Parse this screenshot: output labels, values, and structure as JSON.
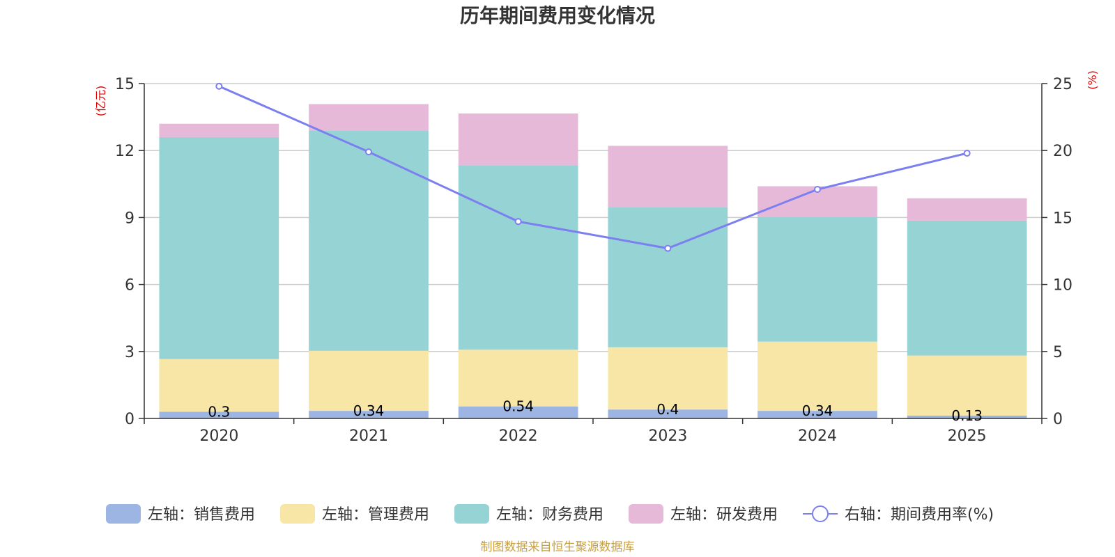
{
  "chart_data": {
    "type": "bar",
    "title": "历年期间费用变化情况",
    "categories": [
      "2020",
      "2021",
      "2022",
      "2023",
      "2024",
      "2025"
    ],
    "left_axis": {
      "unit": "(亿元)",
      "ylim": [
        0,
        15
      ],
      "ticks": [
        "0",
        "3",
        "6",
        "9",
        "12",
        "15"
      ]
    },
    "right_axis": {
      "unit": "(%)",
      "ylim": [
        0,
        25
      ],
      "ticks": [
        "0",
        "5",
        "10",
        "15",
        "20",
        "25"
      ]
    },
    "series": [
      {
        "name": "左轴：销售费用",
        "type": "bar",
        "axis": "left",
        "color": "#9db5e3",
        "values": [
          0.3,
          0.34,
          0.54,
          0.4,
          0.34,
          0.13
        ],
        "labels": [
          "0.3",
          "0.34",
          "0.54",
          "0.4",
          "0.34",
          "0.13"
        ]
      },
      {
        "name": "左轴：管理费用",
        "type": "bar",
        "axis": "left",
        "color": "#f7e6a6",
        "values": [
          2.36,
          2.69,
          2.54,
          2.79,
          3.1,
          2.69
        ]
      },
      {
        "name": "左轴：财务费用",
        "type": "bar",
        "axis": "left",
        "color": "#96d3d4",
        "values": [
          9.94,
          9.87,
          8.24,
          6.27,
          5.58,
          6.04
        ]
      },
      {
        "name": "左轴：研发费用",
        "type": "bar",
        "axis": "left",
        "color": "#e7b9d9",
        "values": [
          0.6,
          1.18,
          2.34,
          2.75,
          1.38,
          1.0
        ]
      },
      {
        "name": "右轴：期间费用率(%)",
        "type": "line",
        "axis": "right",
        "color": "#7b7ff0",
        "values": [
          24.8,
          19.9,
          14.7,
          12.7,
          17.1,
          19.8
        ]
      }
    ],
    "legend_position": "bottom",
    "grid": true
  },
  "source_note": "制图数据来自恒生聚源数据库"
}
